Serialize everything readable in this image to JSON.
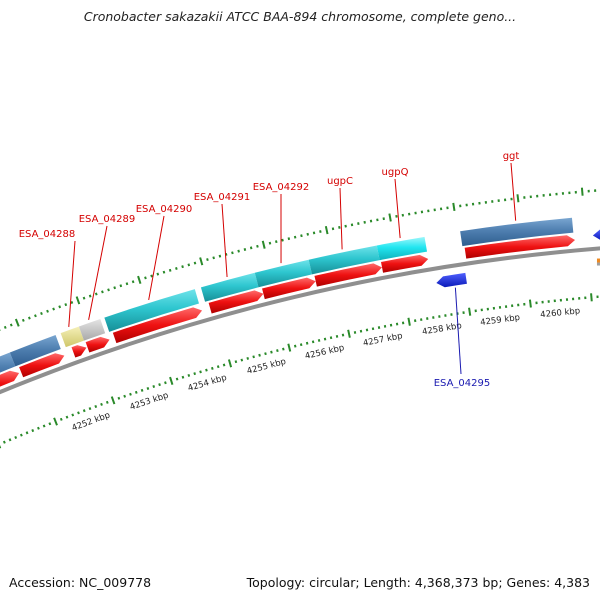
{
  "title": "Cronobacter sakazakii ATCC BAA-894 chromosome, complete geno...",
  "footer": {
    "accession": "Accession: NC_009778",
    "stats": "Topology: circular; Length: 4,368,373 bp; Genes: 4,383"
  },
  "colors": {
    "cds": "#ee1111",
    "gene_blue": "#4f7fb0",
    "gene_cyan": "#2ec6cf",
    "gene_bright_cyan": "#22e6f0",
    "gene_yellow": "#e6df8c",
    "gene_gray": "#c4c4c4",
    "minus_strand": "#1226d8",
    "backbone": "#8f8f8f",
    "tick": "#2a8a2a",
    "plus_label": "#d40000",
    "minus_label": "#1a1ab0"
  },
  "kbp_ticks": [
    "4252 kbp",
    "4253 kbp",
    "4254 kbp",
    "4255 kbp",
    "4256 kbp",
    "4257 kbp",
    "4258 kbp",
    "4259 kbp",
    "4260 kbp"
  ],
  "plus_genes": [
    {
      "label": "",
      "color": "gene_blue"
    },
    {
      "label": "",
      "color": "gene_blue"
    },
    {
      "label": "ESA_04288",
      "color": "gene_yellow"
    },
    {
      "label": "ESA_04289",
      "color": "gene_gray"
    },
    {
      "label": "ESA_04290",
      "color": "gene_cyan"
    },
    {
      "label": "ESA_04291",
      "color": "gene_cyan"
    },
    {
      "label": "ESA_04292",
      "color": "gene_cyan"
    },
    {
      "label": "ugpC",
      "color": "gene_cyan"
    },
    {
      "label": "ugpQ",
      "color": "gene_bright_cyan"
    },
    {
      "label": "ggt",
      "color": "gene_blue"
    }
  ],
  "minus_genes": [
    {
      "label": "ESA_04295"
    }
  ]
}
